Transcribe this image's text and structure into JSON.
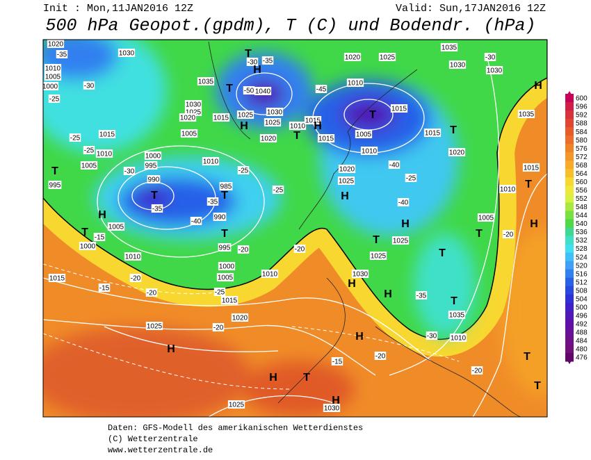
{
  "header": {
    "init": "Init : Mon,11JAN2016 12Z",
    "valid": "Valid: Sun,17JAN2016 12Z",
    "title": "500 hPa Geopot.(gpdm), T (C) und Bodendr. (hPa)"
  },
  "map_labels": {
    "isobars": [
      1020,
      1030,
      1010,
      1005,
      1000,
      1035,
      1040,
      1030,
      1025,
      1020,
      1015,
      1025,
      1030,
      1025,
      1010,
      1015,
      1015,
      1020,
      1005,
      1015,
      1010,
      1005,
      995,
      1000,
      995,
      1010,
      990,
      985,
      990,
      995,
      1000,
      1005,
      1015,
      1020,
      1010,
      1005,
      1000,
      1010,
      1015,
      1025,
      1025,
      1030,
      1030,
      1025,
      1025,
      1020,
      1025,
      1010,
      1005,
      1015,
      1015,
      1020,
      1025,
      1020,
      1010,
      1035,
      1030,
      1030,
      1035,
      1015,
      1010,
      1005,
      1010,
      1035
    ],
    "temperatures": [
      -35,
      -30,
      -25,
      -25,
      -25,
      -30,
      -35,
      -40,
      -35,
      -25,
      -25,
      -20,
      -20,
      -20,
      -20,
      -15,
      -15,
      -20,
      -25,
      -20,
      -15,
      -20,
      -20,
      -25,
      -40,
      -40,
      -35,
      -30,
      -30,
      -30,
      -45,
      -50,
      -35
    ],
    "centers": [
      "H",
      "T",
      "T",
      "H",
      "T",
      "H",
      "T",
      "T",
      "H",
      "H",
      "T",
      "T",
      "H",
      "H",
      "T",
      "T",
      "H",
      "T",
      "H",
      "T",
      "T",
      "H",
      "H",
      "T",
      "H",
      "H",
      "T",
      "T",
      "T",
      "H",
      "T",
      "T"
    ]
  },
  "scale": {
    "ticks": [
      600,
      596,
      592,
      588,
      584,
      580,
      576,
      572,
      568,
      564,
      560,
      556,
      552,
      548,
      544,
      540,
      536,
      532,
      528,
      524,
      520,
      516,
      512,
      508,
      504,
      500,
      496,
      492,
      488,
      484,
      480,
      476
    ],
    "colors": [
      "#c8005a",
      "#d01e46",
      "#d8323c",
      "#e04632",
      "#e85a2a",
      "#ec6e28",
      "#f08228",
      "#f49628",
      "#f8aa28",
      "#f8c028",
      "#f8d830",
      "#f0e838",
      "#d8f040",
      "#a8e840",
      "#78e040",
      "#50d848",
      "#40d890",
      "#40e0c8",
      "#40e0f0",
      "#40c0f8",
      "#40a0f8",
      "#3080f0",
      "#2860e8",
      "#2848e0",
      "#3030d8",
      "#4020c8",
      "#5018b8",
      "#6010a8",
      "#681098",
      "#701088",
      "#701078",
      "#600868"
    ]
  },
  "footer": {
    "line1": "Daten: GFS-Modell des amerikanischen Wetterdienstes",
    "line2": "(C) Wetterzentrale",
    "line3": "www.wetterzentrale.de"
  }
}
